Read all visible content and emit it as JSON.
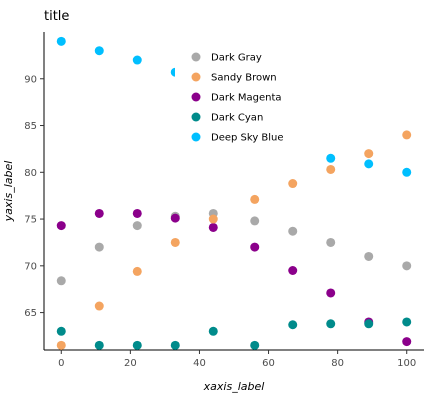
{
  "chart_data": {
    "type": "scatter",
    "title": "title",
    "xlabel": "xaxis_label",
    "ylabel": "yaxis_label",
    "xlim": [
      -5,
      105
    ],
    "ylim": [
      61,
      95
    ],
    "x_ticks": [
      0,
      20,
      40,
      60,
      80,
      100
    ],
    "y_ticks": [
      65,
      70,
      75,
      80,
      85,
      90
    ],
    "grid": false,
    "legend_position": "top-center",
    "series": [
      {
        "name": "Deep Sky Blue",
        "color": "#00BFFF",
        "x": [
          0,
          11,
          22,
          33,
          44,
          56,
          67,
          78,
          89,
          100
        ],
        "y": [
          94.0,
          93.0,
          92.0,
          90.7,
          89.0,
          86.9,
          84.5,
          81.5,
          80.9,
          80.0
        ]
      },
      {
        "name": "Dark Gray",
        "color": "#A9A9A9",
        "x": [
          0,
          11,
          22,
          33,
          44,
          56,
          67,
          78,
          89,
          100
        ],
        "y": [
          68.4,
          72.0,
          74.3,
          75.3,
          75.6,
          74.8,
          73.7,
          72.5,
          71.0,
          70.0
        ]
      },
      {
        "name": "Dark Magenta",
        "color": "#8B008B",
        "x": [
          0,
          11,
          22,
          33,
          44,
          56,
          67,
          78,
          89,
          100
        ],
        "y": [
          74.3,
          75.6,
          75.6,
          75.1,
          74.1,
          72.0,
          69.5,
          67.1,
          64.0,
          61.9
        ]
      },
      {
        "name": "Sandy Brown",
        "color": "#F4A460",
        "x": [
          0,
          11,
          22,
          33,
          44,
          56,
          67,
          78,
          89,
          100
        ],
        "y": [
          61.5,
          65.7,
          69.4,
          72.5,
          75.0,
          77.1,
          78.8,
          80.3,
          82.0,
          84.0
        ]
      },
      {
        "name": "Dark Cyan",
        "color": "#008B8B",
        "x": [
          0,
          11,
          22,
          33,
          44,
          56,
          67,
          78,
          89,
          100
        ],
        "y": [
          63.0,
          61.5,
          61.5,
          61.5,
          63.0,
          61.5,
          63.7,
          63.8,
          63.8,
          64.0
        ]
      }
    ],
    "legend_order": [
      "Dark Gray",
      "Sandy Brown",
      "Dark Magenta",
      "Dark Cyan",
      "Deep Sky Blue"
    ]
  }
}
